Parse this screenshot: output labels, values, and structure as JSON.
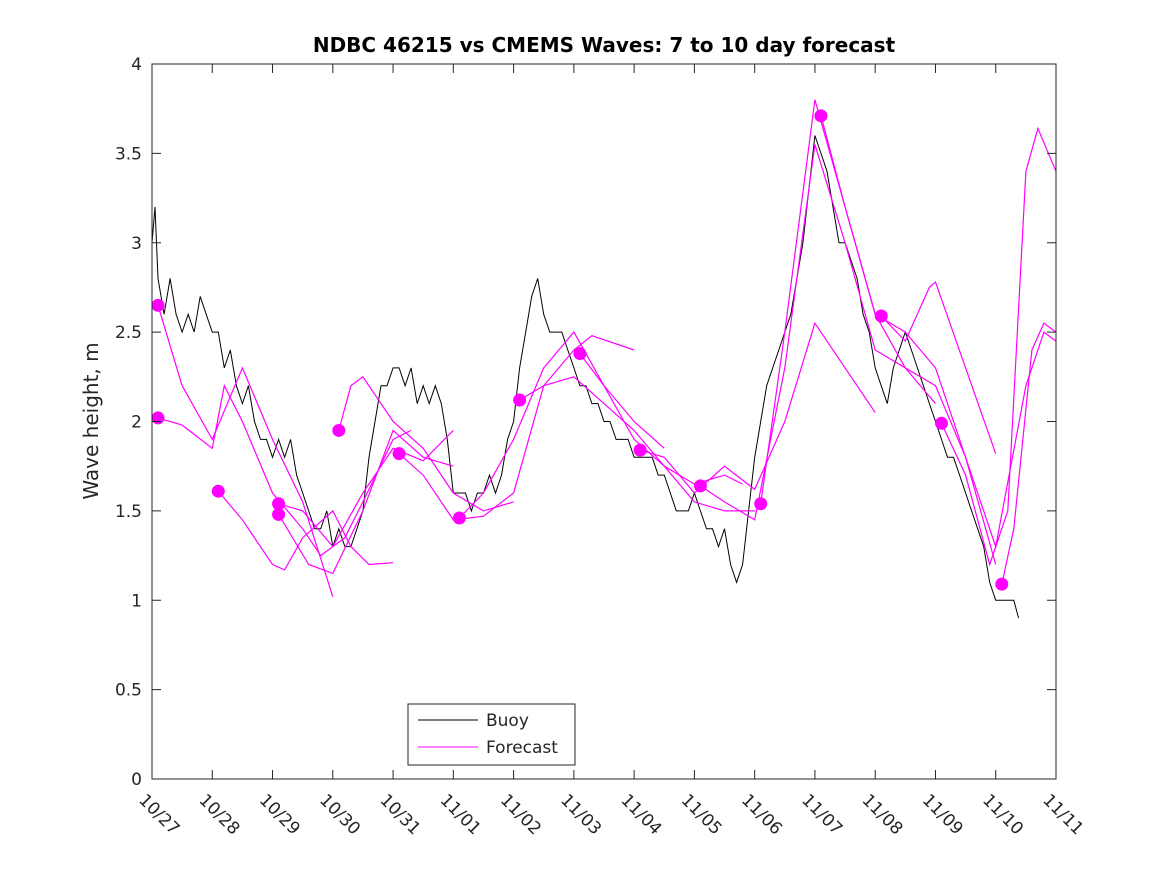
{
  "chart_data": {
    "type": "line",
    "title": "NDBC 46215 vs CMEMS Waves: 7 to 10 day forecast",
    "xlabel": "",
    "ylabel": "Wave height, m",
    "xlim": [
      0,
      15
    ],
    "ylim": [
      0,
      4
    ],
    "x_tick_labels": [
      "10/27",
      "10/28",
      "10/29",
      "10/30",
      "10/31",
      "11/01",
      "11/02",
      "11/03",
      "11/04",
      "11/05",
      "11/06",
      "11/07",
      "11/08",
      "11/09",
      "11/10",
      "11/11"
    ],
    "y_ticks": [
      0,
      0.5,
      1,
      1.5,
      2,
      2.5,
      3,
      3.5,
      4
    ],
    "y_tick_labels": [
      "0",
      "0.5",
      "1",
      "1.5",
      "2",
      "2.5",
      "3",
      "3.5",
      "4"
    ],
    "x_units": "days since 10/27",
    "legend": {
      "placement": "bottom-center",
      "entries": [
        "Buoy",
        "Forecast"
      ]
    },
    "colors": {
      "buoy": "#000000",
      "forecast": "#ff00ff"
    },
    "buoy": [
      [
        0,
        3.0
      ],
      [
        0.05,
        3.2
      ],
      [
        0.1,
        2.8
      ],
      [
        0.2,
        2.6
      ],
      [
        0.3,
        2.8
      ],
      [
        0.4,
        2.6
      ],
      [
        0.5,
        2.5
      ],
      [
        0.6,
        2.6
      ],
      [
        0.7,
        2.5
      ],
      [
        0.8,
        2.7
      ],
      [
        0.9,
        2.6
      ],
      [
        1.0,
        2.5
      ],
      [
        1.1,
        2.5
      ],
      [
        1.2,
        2.3
      ],
      [
        1.3,
        2.4
      ],
      [
        1.4,
        2.2
      ],
      [
        1.5,
        2.1
      ],
      [
        1.6,
        2.2
      ],
      [
        1.7,
        2.0
      ],
      [
        1.8,
        1.9
      ],
      [
        1.9,
        1.9
      ],
      [
        2.0,
        1.8
      ],
      [
        2.1,
        1.9
      ],
      [
        2.2,
        1.8
      ],
      [
        2.3,
        1.9
      ],
      [
        2.4,
        1.7
      ],
      [
        2.5,
        1.6
      ],
      [
        2.6,
        1.5
      ],
      [
        2.7,
        1.4
      ],
      [
        2.8,
        1.4
      ],
      [
        2.9,
        1.5
      ],
      [
        3.0,
        1.3
      ],
      [
        3.1,
        1.4
      ],
      [
        3.2,
        1.3
      ],
      [
        3.3,
        1.3
      ],
      [
        3.4,
        1.4
      ],
      [
        3.5,
        1.5
      ],
      [
        3.6,
        1.8
      ],
      [
        3.7,
        2.0
      ],
      [
        3.8,
        2.2
      ],
      [
        3.9,
        2.2
      ],
      [
        4.0,
        2.3
      ],
      [
        4.1,
        2.3
      ],
      [
        4.2,
        2.2
      ],
      [
        4.3,
        2.3
      ],
      [
        4.4,
        2.1
      ],
      [
        4.5,
        2.2
      ],
      [
        4.6,
        2.1
      ],
      [
        4.7,
        2.2
      ],
      [
        4.8,
        2.1
      ],
      [
        4.9,
        1.9
      ],
      [
        5.0,
        1.6
      ],
      [
        5.1,
        1.6
      ],
      [
        5.2,
        1.6
      ],
      [
        5.3,
        1.5
      ],
      [
        5.4,
        1.6
      ],
      [
        5.5,
        1.6
      ],
      [
        5.6,
        1.7
      ],
      [
        5.7,
        1.6
      ],
      [
        5.8,
        1.7
      ],
      [
        5.9,
        1.9
      ],
      [
        6.0,
        2.0
      ],
      [
        6.1,
        2.3
      ],
      [
        6.2,
        2.5
      ],
      [
        6.3,
        2.7
      ],
      [
        6.4,
        2.8
      ],
      [
        6.5,
        2.6
      ],
      [
        6.6,
        2.5
      ],
      [
        6.7,
        2.5
      ],
      [
        6.8,
        2.5
      ],
      [
        6.9,
        2.4
      ],
      [
        7.0,
        2.3
      ],
      [
        7.1,
        2.2
      ],
      [
        7.2,
        2.2
      ],
      [
        7.3,
        2.1
      ],
      [
        7.4,
        2.1
      ],
      [
        7.5,
        2.0
      ],
      [
        7.6,
        2.0
      ],
      [
        7.7,
        1.9
      ],
      [
        7.8,
        1.9
      ],
      [
        7.9,
        1.9
      ],
      [
        8.0,
        1.8
      ],
      [
        8.1,
        1.8
      ],
      [
        8.2,
        1.8
      ],
      [
        8.3,
        1.8
      ],
      [
        8.4,
        1.7
      ],
      [
        8.5,
        1.7
      ],
      [
        8.6,
        1.6
      ],
      [
        8.7,
        1.5
      ],
      [
        8.8,
        1.5
      ],
      [
        8.9,
        1.5
      ],
      [
        9.0,
        1.6
      ],
      [
        9.1,
        1.5
      ],
      [
        9.2,
        1.4
      ],
      [
        9.3,
        1.4
      ],
      [
        9.4,
        1.3
      ],
      [
        9.5,
        1.4
      ],
      [
        9.6,
        1.2
      ],
      [
        9.7,
        1.1
      ],
      [
        9.8,
        1.2
      ],
      [
        9.9,
        1.5
      ],
      [
        10.0,
        1.8
      ],
      [
        10.1,
        2.0
      ],
      [
        10.2,
        2.2
      ],
      [
        10.3,
        2.3
      ],
      [
        10.4,
        2.4
      ],
      [
        10.5,
        2.5
      ],
      [
        10.6,
        2.6
      ],
      [
        10.7,
        2.8
      ],
      [
        10.8,
        3.0
      ],
      [
        10.9,
        3.3
      ],
      [
        11.0,
        3.6
      ],
      [
        11.1,
        3.5
      ],
      [
        11.2,
        3.4
      ],
      [
        11.3,
        3.2
      ],
      [
        11.4,
        3.0
      ],
      [
        11.5,
        3.0
      ],
      [
        11.6,
        2.9
      ],
      [
        11.7,
        2.8
      ],
      [
        11.8,
        2.6
      ],
      [
        11.9,
        2.5
      ],
      [
        12.0,
        2.3
      ],
      [
        12.1,
        2.2
      ],
      [
        12.2,
        2.1
      ],
      [
        12.3,
        2.3
      ],
      [
        12.4,
        2.4
      ],
      [
        12.5,
        2.5
      ],
      [
        12.6,
        2.4
      ],
      [
        12.7,
        2.3
      ],
      [
        12.8,
        2.2
      ],
      [
        12.9,
        2.1
      ],
      [
        13.0,
        2.0
      ],
      [
        13.1,
        1.9
      ],
      [
        13.2,
        1.8
      ],
      [
        13.3,
        1.8
      ],
      [
        13.4,
        1.7
      ],
      [
        13.5,
        1.6
      ],
      [
        13.6,
        1.5
      ],
      [
        13.7,
        1.4
      ],
      [
        13.8,
        1.3
      ],
      [
        13.9,
        1.1
      ],
      [
        14.0,
        1.0
      ],
      [
        14.1,
        1.0
      ],
      [
        14.2,
        1.0
      ],
      [
        14.3,
        1.0
      ],
      [
        14.38,
        0.9
      ]
    ],
    "forecasts": [
      [
        [
          0.1,
          2.65
        ],
        [
          0.5,
          2.2
        ],
        [
          1.0,
          1.9
        ],
        [
          1.5,
          2.3
        ],
        [
          2.0,
          1.9
        ],
        [
          2.5,
          1.55
        ],
        [
          3.0,
          1.02
        ]
      ],
      [
        [
          0.1,
          2.02
        ],
        [
          0.5,
          1.98
        ],
        [
          1.0,
          1.85
        ],
        [
          1.2,
          2.2
        ],
        [
          1.5,
          2.0
        ],
        [
          2.0,
          1.6
        ],
        [
          2.5,
          1.4
        ],
        [
          2.8,
          1.25
        ],
        [
          3.2,
          1.35
        ],
        [
          3.5,
          1.55
        ],
        [
          4.0,
          1.9
        ],
        [
          4.3,
          1.95
        ]
      ],
      [
        [
          1.1,
          1.61
        ],
        [
          1.5,
          1.45
        ],
        [
          2.0,
          1.2
        ],
        [
          2.2,
          1.17
        ],
        [
          2.5,
          1.35
        ],
        [
          3.0,
          1.5
        ],
        [
          3.3,
          1.3
        ],
        [
          3.6,
          1.2
        ],
        [
          4.0,
          1.21
        ]
      ],
      [
        [
          2.1,
          1.54
        ],
        [
          2.5,
          1.5
        ],
        [
          3.0,
          1.3
        ],
        [
          3.5,
          1.6
        ],
        [
          4.0,
          1.85
        ],
        [
          4.5,
          1.78
        ],
        [
          5.0,
          1.95
        ]
      ],
      [
        [
          2.1,
          1.48
        ],
        [
          2.6,
          1.2
        ],
        [
          3.0,
          1.15
        ],
        [
          3.5,
          1.5
        ],
        [
          4.0,
          1.95
        ],
        [
          4.5,
          1.8
        ],
        [
          5.0,
          1.75
        ]
      ],
      [
        [
          3.1,
          1.95
        ],
        [
          3.3,
          2.2
        ],
        [
          3.5,
          2.25
        ],
        [
          4.0,
          2.0
        ],
        [
          4.5,
          1.85
        ],
        [
          5.0,
          1.6
        ],
        [
          5.5,
          1.5
        ],
        [
          6.0,
          1.55
        ]
      ],
      [
        [
          4.1,
          1.82
        ],
        [
          4.5,
          1.7
        ],
        [
          5.0,
          1.45
        ],
        [
          5.5,
          1.47
        ],
        [
          6.0,
          1.6
        ],
        [
          6.5,
          2.2
        ],
        [
          7.0,
          2.4
        ],
        [
          7.3,
          2.48
        ],
        [
          8.0,
          2.4
        ]
      ],
      [
        [
          5.1,
          1.46
        ],
        [
          5.5,
          1.6
        ],
        [
          6.0,
          1.9
        ],
        [
          6.5,
          2.3
        ],
        [
          7.0,
          2.5
        ],
        [
          7.5,
          2.2
        ],
        [
          8.0,
          2.0
        ],
        [
          8.5,
          1.85
        ]
      ],
      [
        [
          6.1,
          2.12
        ],
        [
          6.5,
          2.2
        ],
        [
          7.0,
          2.25
        ],
        [
          7.5,
          2.1
        ],
        [
          8.0,
          1.95
        ],
        [
          8.5,
          1.75
        ],
        [
          9.0,
          1.65
        ],
        [
          9.5,
          1.7
        ],
        [
          9.8,
          1.65
        ]
      ],
      [
        [
          7.1,
          2.38
        ],
        [
          7.5,
          2.2
        ],
        [
          8.0,
          1.9
        ],
        [
          8.5,
          1.75
        ],
        [
          9.0,
          1.55
        ],
        [
          9.5,
          1.5
        ],
        [
          10.0,
          1.5
        ]
      ],
      [
        [
          8.1,
          1.84
        ],
        [
          8.5,
          1.8
        ],
        [
          9.0,
          1.6
        ],
        [
          9.5,
          1.75
        ],
        [
          10.0,
          1.62
        ],
        [
          10.5,
          2.0
        ],
        [
          11.0,
          2.55
        ],
        [
          11.5,
          2.3
        ],
        [
          12.0,
          2.05
        ]
      ],
      [
        [
          9.1,
          1.64
        ],
        [
          9.5,
          1.55
        ],
        [
          10.0,
          1.45
        ],
        [
          10.5,
          2.3
        ],
        [
          11.0,
          3.55
        ],
        [
          11.5,
          3.0
        ],
        [
          12.0,
          2.4
        ],
        [
          12.5,
          2.3
        ],
        [
          13.0,
          2.1
        ]
      ],
      [
        [
          10.1,
          1.54
        ],
        [
          10.5,
          2.5
        ],
        [
          11.0,
          3.8
        ],
        [
          11.5,
          3.2
        ],
        [
          12.0,
          2.6
        ],
        [
          12.5,
          2.5
        ],
        [
          13.0,
          2.3
        ],
        [
          13.5,
          1.8
        ],
        [
          14.0,
          1.2
        ]
      ],
      [
        [
          11.1,
          3.71
        ],
        [
          11.5,
          3.2
        ],
        [
          12.0,
          2.6
        ],
        [
          12.5,
          2.3
        ],
        [
          13.0,
          2.2
        ],
        [
          13.5,
          1.8
        ],
        [
          14.0,
          1.3
        ],
        [
          14.5,
          2.2
        ],
        [
          14.8,
          2.5
        ],
        [
          15.0,
          2.45
        ]
      ],
      [
        [
          12.1,
          2.59
        ],
        [
          12.5,
          2.45
        ],
        [
          12.9,
          2.75
        ],
        [
          13.0,
          2.78
        ],
        [
          13.5,
          2.3
        ],
        [
          14.0,
          1.82
        ]
      ],
      [
        [
          13.1,
          1.99
        ],
        [
          13.5,
          1.7
        ],
        [
          13.9,
          1.2
        ],
        [
          14.2,
          1.5
        ],
        [
          14.5,
          3.4
        ],
        [
          14.7,
          3.64
        ],
        [
          15.0,
          3.4
        ]
      ],
      [
        [
          14.1,
          1.09
        ],
        [
          14.3,
          1.4
        ],
        [
          14.6,
          2.4
        ],
        [
          14.8,
          2.55
        ],
        [
          15.0,
          2.5
        ]
      ]
    ]
  }
}
